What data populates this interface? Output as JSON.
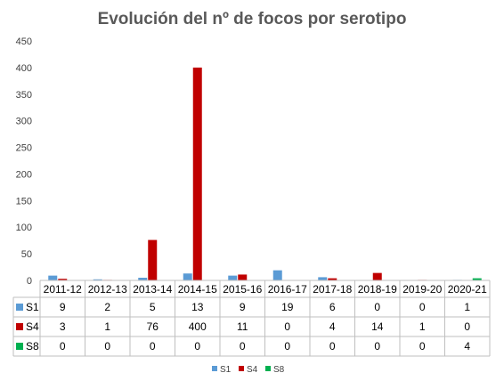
{
  "chart_data": {
    "type": "bar",
    "title": "Evolución del nº de focos por serotipo",
    "xlabel": "",
    "ylabel": "",
    "ylim": [
      0,
      450
    ],
    "yticks": [
      0,
      50,
      100,
      150,
      200,
      250,
      300,
      350,
      400,
      450
    ],
    "grid": false,
    "legend_position": "bottom",
    "data_table": true,
    "categories": [
      "2011-12",
      "2012-13",
      "2013-14",
      "2014-15",
      "2015-16",
      "2016-17",
      "2017-18",
      "2018-19",
      "2019-20",
      "2020-21"
    ],
    "series": [
      {
        "name": "S1",
        "color": "#5B9BD5",
        "values": [
          9,
          2,
          5,
          13,
          9,
          19,
          6,
          0,
          0,
          1
        ]
      },
      {
        "name": "S4",
        "color": "#C00000",
        "values": [
          3,
          1,
          76,
          400,
          11,
          0,
          4,
          14,
          1,
          0
        ]
      },
      {
        "name": "S8",
        "color": "#00B050",
        "values": [
          0,
          0,
          0,
          0,
          0,
          0,
          0,
          0,
          0,
          4
        ]
      }
    ]
  }
}
